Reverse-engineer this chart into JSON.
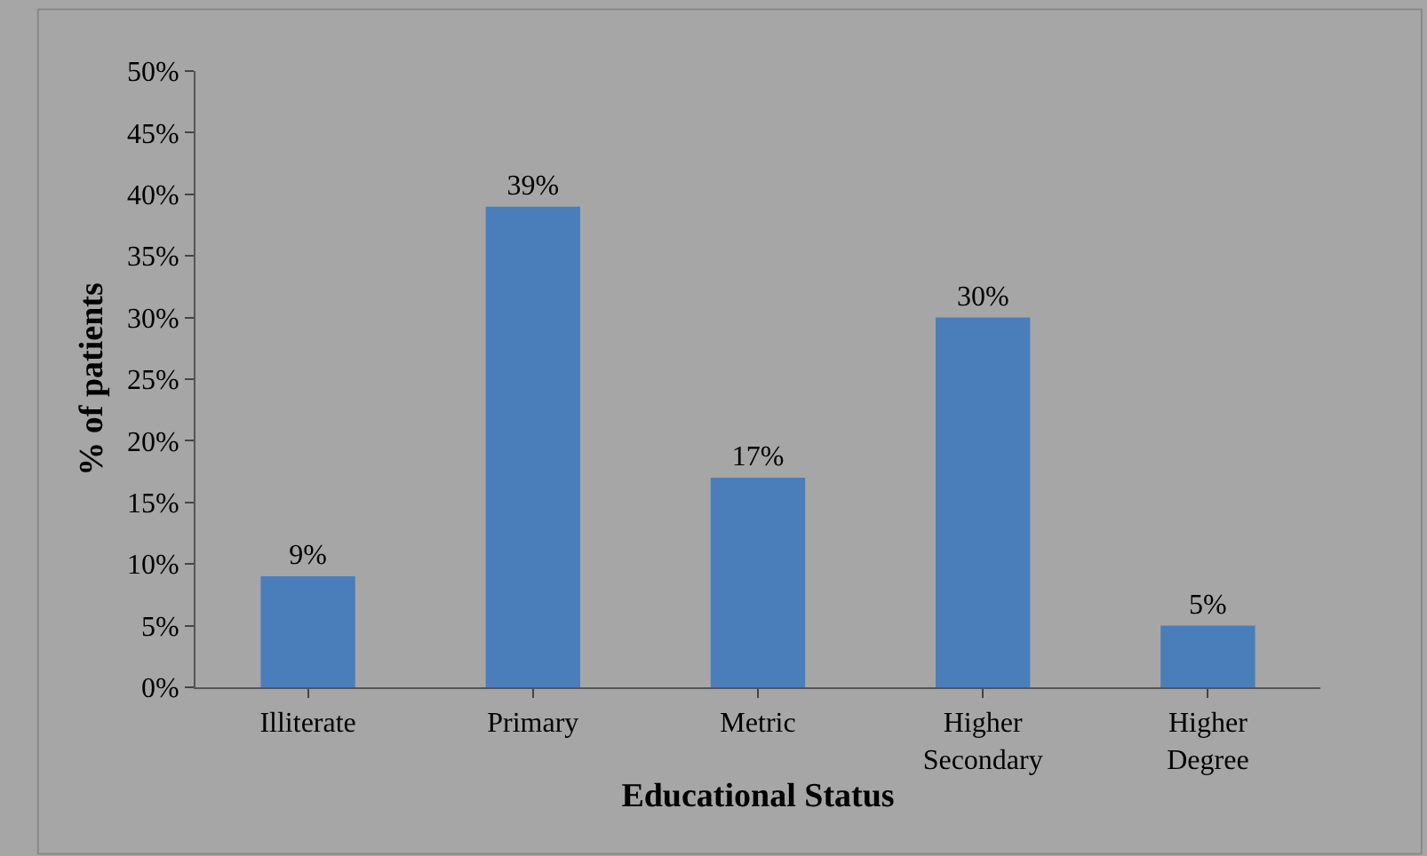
{
  "chart_data": {
    "type": "bar",
    "xlabel": "Educational Status",
    "ylabel": "% of patients",
    "categories": [
      "Illiterate",
      "Primary",
      "Metric",
      "Higher Secondary",
      "Higher Degree"
    ],
    "values": [
      9,
      39,
      17,
      30,
      5
    ],
    "value_labels": [
      "9%",
      "39%",
      "17%",
      "30%",
      "5%"
    ],
    "color": "#4a7ebb",
    "ylim": [
      0,
      50
    ],
    "yticks": [
      {
        "value": 0,
        "label": "0%"
      },
      {
        "value": 5,
        "label": "5%"
      },
      {
        "value": 10,
        "label": "10%"
      },
      {
        "value": 15,
        "label": "15%"
      },
      {
        "value": 20,
        "label": "20%"
      },
      {
        "value": 25,
        "label": "25%"
      },
      {
        "value": 30,
        "label": "30%"
      },
      {
        "value": 35,
        "label": "35%"
      },
      {
        "value": 40,
        "label": "40%"
      },
      {
        "value": 45,
        "label": "45%"
      },
      {
        "value": 50,
        "label": "50%"
      }
    ],
    "grid": false
  }
}
